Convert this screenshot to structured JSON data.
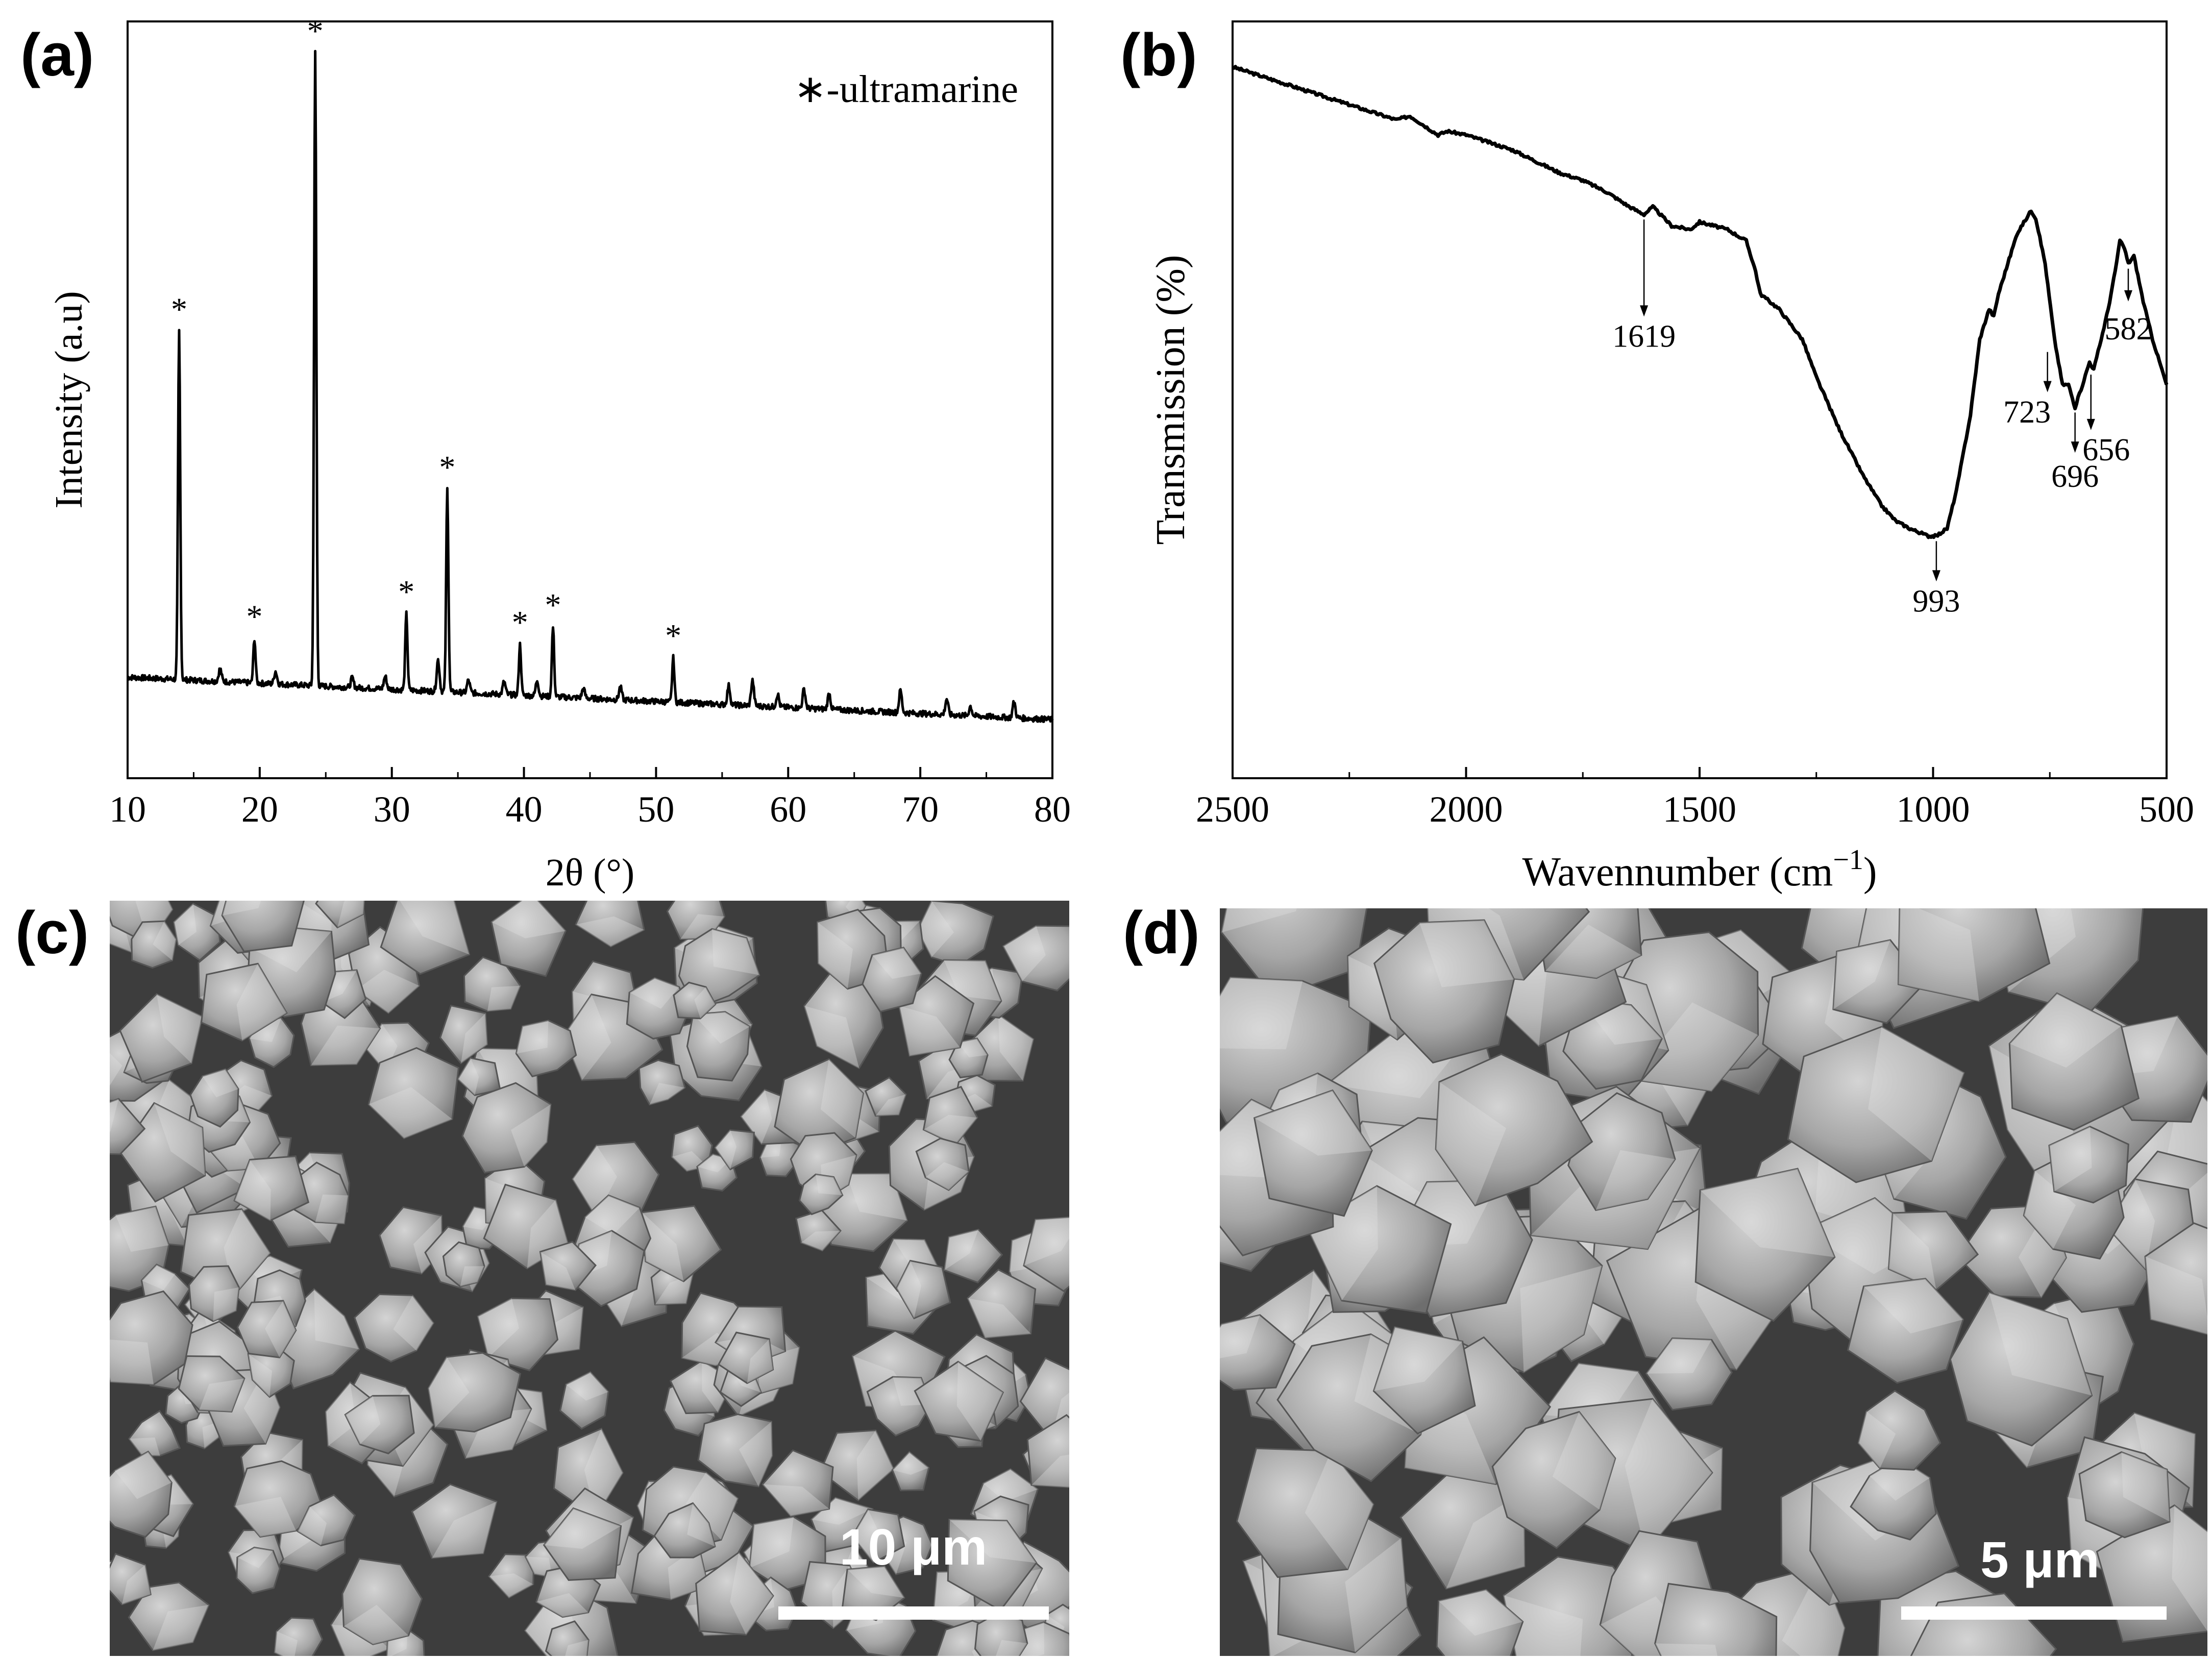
{
  "panels": {
    "a": "(a)",
    "b": "(b)",
    "c": "(c)",
    "d": "(d)"
  },
  "chart_data": [
    {
      "type": "line",
      "panel": "a",
      "title": "",
      "xlabel": "2θ (°)",
      "ylabel": "Intensity (a.u)",
      "xlim": [
        10,
        80
      ],
      "ylim": [
        0,
        100
      ],
      "xticks": [
        10,
        20,
        30,
        40,
        50,
        60,
        70,
        80
      ],
      "y_tick_labels": false,
      "legend": "top-right",
      "legend_text": "∗-ultramarine",
      "peak_marker": "*",
      "series": [
        {
          "peaks": [
            {
              "x": 13.9,
              "y": 55
            },
            {
              "x": 19.6,
              "y": 7
            },
            {
              "x": 24.2,
              "y": 100
            },
            {
              "x": 31.1,
              "y": 12
            },
            {
              "x": 34.2,
              "y": 32
            },
            {
              "x": 39.7,
              "y": 8
            },
            {
              "x": 42.2,
              "y": 11
            },
            {
              "x": 51.3,
              "y": 7
            }
          ],
          "minor_peaks": [
            {
              "x": 17.0,
              "y": 2.0
            },
            {
              "x": 21.2,
              "y": 2.0
            },
            {
              "x": 27.0,
              "y": 1.5
            },
            {
              "x": 29.5,
              "y": 2.0
            },
            {
              "x": 33.5,
              "y": 5.0
            },
            {
              "x": 35.8,
              "y": 2.0
            },
            {
              "x": 38.5,
              "y": 2.0
            },
            {
              "x": 41.0,
              "y": 2.5
            },
            {
              "x": 44.5,
              "y": 1.5
            },
            {
              "x": 47.3,
              "y": 2.0
            },
            {
              "x": 55.5,
              "y": 3.0
            },
            {
              "x": 57.3,
              "y": 4.0
            },
            {
              "x": 59.2,
              "y": 2.0
            },
            {
              "x": 61.2,
              "y": 3.0
            },
            {
              "x": 63.1,
              "y": 2.5
            },
            {
              "x": 68.5,
              "y": 3.5
            },
            {
              "x": 72.0,
              "y": 2.5
            },
            {
              "x": 73.8,
              "y": 1.5
            },
            {
              "x": 77.1,
              "y": 2.5
            }
          ],
          "baseline": {
            "start": 7.5,
            "end": 0.8
          }
        }
      ]
    },
    {
      "type": "line",
      "panel": "b",
      "title": "",
      "xlabel": "Wavennumber (cm",
      "xlabel_sup": "−1",
      "xlabel_tail": ")",
      "ylabel": "Transmission (%)",
      "xlim": [
        2500,
        500
      ],
      "ylim": [
        0,
        100
      ],
      "xticks": [
        2500,
        2000,
        1500,
        1000,
        500
      ],
      "y_tick_labels": false,
      "series": [
        {
          "x": [
            2500,
            2400,
            2300,
            2200,
            2150,
            2120,
            2060,
            2040,
            2000,
            1950,
            1900,
            1850,
            1800,
            1750,
            1700,
            1650,
            1619,
            1600,
            1560,
            1520,
            1500,
            1470,
            1440,
            1400,
            1380,
            1370,
            1330,
            1280,
            1250,
            1200,
            1150,
            1110,
            1080,
            1050,
            1030,
            1010,
            993,
            970,
            950,
            920,
            900,
            880,
            870,
            860,
            840,
            820,
            800,
            790,
            780,
            760,
            740,
            723,
            710,
            696,
            680,
            665,
            656,
            640,
            625,
            610,
            600,
            590,
            582,
            570,
            550,
            530,
            510,
            500
          ],
          "y": [
            94,
            92,
            90,
            88,
            87,
            87.5,
            85,
            85.5,
            85,
            84,
            83,
            81.5,
            80,
            79,
            77.5,
            75.5,
            74.5,
            75.5,
            73,
            72.5,
            73.5,
            73,
            72.5,
            71,
            67,
            64,
            62,
            58,
            53,
            46,
            40,
            36,
            34,
            33,
            32.5,
            32,
            32,
            33,
            38,
            48,
            58,
            62,
            61,
            64,
            68,
            72,
            74,
            75,
            74,
            68,
            58,
            52,
            52,
            49,
            52,
            55,
            54,
            58,
            62,
            67,
            71,
            70,
            68,
            69,
            63,
            58,
            54,
            52
          ]
        }
      ],
      "annotations": [
        {
          "label": "1619",
          "x": 1619,
          "y": 74.5,
          "arrow_to": 61,
          "label_y": 57,
          "label_dx": 0
        },
        {
          "label": "993",
          "x": 993,
          "y": 32,
          "arrow_to": 26,
          "label_y": 22,
          "label_dx": 0
        },
        {
          "label": "723",
          "x": 755,
          "y": 57,
          "arrow_to": 51,
          "label_y": 47,
          "label_dx": -40
        },
        {
          "label": "696",
          "x": 696,
          "y": 49,
          "arrow_to": 43,
          "label_y": 38.5,
          "label_dx": 0
        },
        {
          "label": "656",
          "x": 662,
          "y": 54,
          "arrow_to": 46,
          "label_y": 42,
          "label_dx": 30
        },
        {
          "label": "582",
          "x": 582,
          "y": 68,
          "arrow_to": 63,
          "label_y": 58,
          "label_dx": 0
        }
      ]
    }
  ],
  "sem_c": {
    "scale_label": "10 μm"
  },
  "sem_d": {
    "scale_label": "5 μm"
  }
}
